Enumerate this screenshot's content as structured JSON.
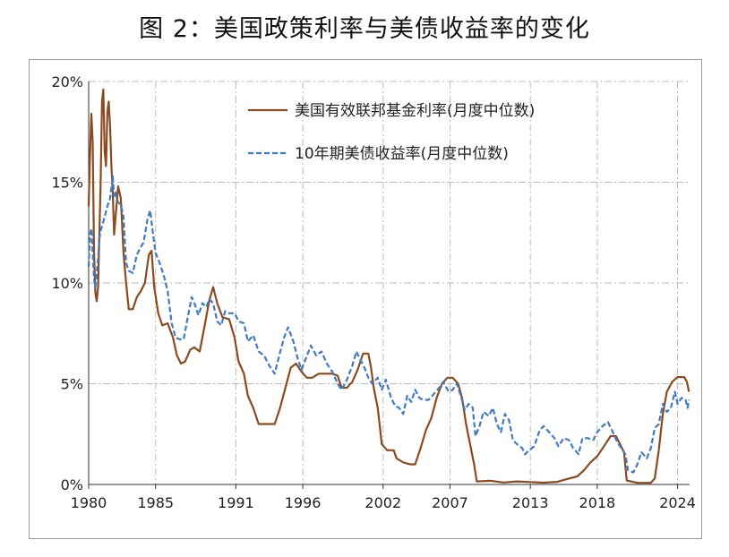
{
  "figure_title": "图 2：美国政策利率与美债收益率的变化",
  "chart_data": {
    "type": "line",
    "title": "图 2：美国政策利率与美债收益率的变化",
    "xlabel": "",
    "ylabel": "",
    "xlim": [
      1980,
      2024.9
    ],
    "ylim": [
      0,
      20
    ],
    "x_ticks": [
      1980,
      1985,
      1991,
      1996,
      2002,
      2007,
      2013,
      2018,
      2024
    ],
    "y_ticks": [
      0,
      5,
      10,
      15,
      20
    ],
    "y_tick_labels": [
      "0%",
      "5%",
      "10%",
      "15%",
      "20%"
    ],
    "grid": true,
    "legend_position": "top-right",
    "series": [
      {
        "name": "美国有效联邦基金利率(月度中位数)",
        "color": "#8B4A1F",
        "style": "solid",
        "points": [
          [
            1980.0,
            13.8
          ],
          [
            1980.1,
            16.4
          ],
          [
            1980.2,
            18.4
          ],
          [
            1980.3,
            17.0
          ],
          [
            1980.4,
            11.5
          ],
          [
            1980.5,
            9.5
          ],
          [
            1980.6,
            9.1
          ],
          [
            1980.7,
            9.8
          ],
          [
            1980.8,
            12.5
          ],
          [
            1980.9,
            15.0
          ],
          [
            1981.0,
            19.0
          ],
          [
            1981.1,
            19.6
          ],
          [
            1981.2,
            16.5
          ],
          [
            1981.3,
            15.8
          ],
          [
            1981.4,
            18.5
          ],
          [
            1981.5,
            19.0
          ],
          [
            1981.6,
            17.8
          ],
          [
            1981.7,
            15.8
          ],
          [
            1981.8,
            14.5
          ],
          [
            1981.9,
            12.4
          ],
          [
            1982.0,
            13.2
          ],
          [
            1982.2,
            14.8
          ],
          [
            1982.4,
            14.2
          ],
          [
            1982.6,
            11.5
          ],
          [
            1982.8,
            10.0
          ],
          [
            1983.0,
            8.7
          ],
          [
            1983.3,
            8.7
          ],
          [
            1983.6,
            9.3
          ],
          [
            1983.9,
            9.6
          ],
          [
            1984.2,
            10.0
          ],
          [
            1984.5,
            11.4
          ],
          [
            1984.7,
            11.6
          ],
          [
            1984.9,
            9.8
          ],
          [
            1985.2,
            8.5
          ],
          [
            1985.5,
            7.9
          ],
          [
            1985.9,
            8.0
          ],
          [
            1986.3,
            7.3
          ],
          [
            1986.6,
            6.4
          ],
          [
            1986.9,
            6.0
          ],
          [
            1987.2,
            6.1
          ],
          [
            1987.6,
            6.7
          ],
          [
            1987.9,
            6.8
          ],
          [
            1988.3,
            6.6
          ],
          [
            1988.7,
            8.0
          ],
          [
            1989.0,
            9.1
          ],
          [
            1989.3,
            9.8
          ],
          [
            1989.6,
            9.0
          ],
          [
            1990.0,
            8.3
          ],
          [
            1990.5,
            8.2
          ],
          [
            1990.9,
            7.3
          ],
          [
            1991.2,
            6.1
          ],
          [
            1991.6,
            5.5
          ],
          [
            1991.9,
            4.4
          ],
          [
            1992.3,
            3.8
          ],
          [
            1992.7,
            3.0
          ],
          [
            1993.1,
            3.0
          ],
          [
            1993.5,
            3.0
          ],
          [
            1993.9,
            3.0
          ],
          [
            1994.3,
            3.8
          ],
          [
            1994.7,
            4.8
          ],
          [
            1995.1,
            5.8
          ],
          [
            1995.5,
            6.0
          ],
          [
            1995.9,
            5.6
          ],
          [
            1996.3,
            5.3
          ],
          [
            1996.7,
            5.3
          ],
          [
            1997.2,
            5.5
          ],
          [
            1997.7,
            5.5
          ],
          [
            1998.2,
            5.5
          ],
          [
            1998.6,
            5.4
          ],
          [
            1998.9,
            4.8
          ],
          [
            1999.3,
            4.8
          ],
          [
            1999.7,
            5.1
          ],
          [
            2000.1,
            5.7
          ],
          [
            2000.5,
            6.5
          ],
          [
            2000.9,
            6.5
          ],
          [
            2001.1,
            5.8
          ],
          [
            2001.3,
            4.8
          ],
          [
            2001.6,
            3.8
          ],
          [
            2001.9,
            2.0
          ],
          [
            2002.3,
            1.7
          ],
          [
            2002.8,
            1.7
          ],
          [
            2003.0,
            1.3
          ],
          [
            2003.5,
            1.1
          ],
          [
            2004.0,
            1.0
          ],
          [
            2004.4,
            1.0
          ],
          [
            2004.8,
            1.8
          ],
          [
            2005.2,
            2.7
          ],
          [
            2005.6,
            3.3
          ],
          [
            2006.0,
            4.3
          ],
          [
            2006.4,
            5.0
          ],
          [
            2006.8,
            5.3
          ],
          [
            2007.2,
            5.3
          ],
          [
            2007.6,
            5.0
          ],
          [
            2007.9,
            4.3
          ],
          [
            2008.2,
            3.0
          ],
          [
            2008.5,
            2.0
          ],
          [
            2008.8,
            1.0
          ],
          [
            2009.0,
            0.15
          ],
          [
            2010.0,
            0.18
          ],
          [
            2011.0,
            0.1
          ],
          [
            2012.0,
            0.15
          ],
          [
            2013.0,
            0.12
          ],
          [
            2014.0,
            0.09
          ],
          [
            2015.0,
            0.13
          ],
          [
            2015.9,
            0.3
          ],
          [
            2016.5,
            0.4
          ],
          [
            2017.0,
            0.7
          ],
          [
            2017.5,
            1.1
          ],
          [
            2018.0,
            1.4
          ],
          [
            2018.5,
            1.9
          ],
          [
            2019.0,
            2.4
          ],
          [
            2019.4,
            2.4
          ],
          [
            2019.7,
            2.0
          ],
          [
            2020.0,
            1.6
          ],
          [
            2020.2,
            0.2
          ],
          [
            2021.0,
            0.08
          ],
          [
            2022.0,
            0.08
          ],
          [
            2022.3,
            0.3
          ],
          [
            2022.6,
            1.7
          ],
          [
            2022.9,
            3.5
          ],
          [
            2023.2,
            4.6
          ],
          [
            2023.6,
            5.1
          ],
          [
            2024.0,
            5.33
          ],
          [
            2024.5,
            5.33
          ],
          [
            2024.7,
            5.1
          ],
          [
            2024.85,
            4.6
          ]
        ]
      },
      {
        "name": "10年期美债收益率(月度中位数)",
        "color": "#3E7BC4",
        "style": "dashed",
        "points": [
          [
            1980.0,
            10.8
          ],
          [
            1980.1,
            12.4
          ],
          [
            1980.2,
            12.7
          ],
          [
            1980.3,
            11.5
          ],
          [
            1980.4,
            10.2
          ],
          [
            1980.5,
            9.8
          ],
          [
            1980.6,
            10.5
          ],
          [
            1980.7,
            11.2
          ],
          [
            1980.8,
            12.2
          ],
          [
            1980.9,
            12.6
          ],
          [
            1981.0,
            12.8
          ],
          [
            1981.2,
            13.3
          ],
          [
            1981.4,
            13.8
          ],
          [
            1981.6,
            14.2
          ],
          [
            1981.8,
            15.3
          ],
          [
            1981.9,
            14.3
          ],
          [
            1982.0,
            14.5
          ],
          [
            1982.2,
            14.0
          ],
          [
            1982.4,
            13.9
          ],
          [
            1982.6,
            13.3
          ],
          [
            1982.8,
            11.0
          ],
          [
            1983.0,
            10.6
          ],
          [
            1983.3,
            10.5
          ],
          [
            1983.6,
            11.4
          ],
          [
            1983.9,
            11.8
          ],
          [
            1984.1,
            12.0
          ],
          [
            1984.4,
            13.2
          ],
          [
            1984.6,
            13.6
          ],
          [
            1984.8,
            12.5
          ],
          [
            1985.0,
            11.5
          ],
          [
            1985.3,
            11.0
          ],
          [
            1985.6,
            10.4
          ],
          [
            1985.9,
            9.6
          ],
          [
            1986.2,
            8.0
          ],
          [
            1986.5,
            7.3
          ],
          [
            1986.8,
            7.2
          ],
          [
            1987.1,
            7.2
          ],
          [
            1987.4,
            8.3
          ],
          [
            1987.7,
            9.3
          ],
          [
            1987.9,
            9.0
          ],
          [
            1988.2,
            8.4
          ],
          [
            1988.5,
            9.0
          ],
          [
            1988.8,
            8.8
          ],
          [
            1989.0,
            9.2
          ],
          [
            1989.3,
            9.0
          ],
          [
            1989.6,
            8.1
          ],
          [
            1989.9,
            7.9
          ],
          [
            1990.2,
            8.6
          ],
          [
            1990.5,
            8.5
          ],
          [
            1990.9,
            8.5
          ],
          [
            1991.2,
            8.1
          ],
          [
            1991.6,
            8.0
          ],
          [
            1991.9,
            7.1
          ],
          [
            1992.3,
            7.4
          ],
          [
            1992.7,
            6.6
          ],
          [
            1993.1,
            6.4
          ],
          [
            1993.5,
            5.9
          ],
          [
            1993.9,
            5.5
          ],
          [
            1994.2,
            6.3
          ],
          [
            1994.6,
            7.3
          ],
          [
            1994.9,
            7.8
          ],
          [
            1995.3,
            7.1
          ],
          [
            1995.6,
            6.3
          ],
          [
            1995.9,
            5.7
          ],
          [
            1996.2,
            6.2
          ],
          [
            1996.6,
            6.9
          ],
          [
            1997.0,
            6.4
          ],
          [
            1997.4,
            6.6
          ],
          [
            1997.8,
            6.0
          ],
          [
            1998.2,
            5.6
          ],
          [
            1998.6,
            5.0
          ],
          [
            1998.9,
            4.7
          ],
          [
            1999.3,
            5.2
          ],
          [
            1999.7,
            5.9
          ],
          [
            2000.0,
            6.6
          ],
          [
            2000.3,
            6.2
          ],
          [
            2000.6,
            5.8
          ],
          [
            2000.9,
            5.3
          ],
          [
            2001.2,
            5.0
          ],
          [
            2001.6,
            5.3
          ],
          [
            2001.9,
            4.7
          ],
          [
            2002.2,
            5.2
          ],
          [
            2002.6,
            4.3
          ],
          [
            2002.9,
            3.9
          ],
          [
            2003.2,
            3.8
          ],
          [
            2003.5,
            3.5
          ],
          [
            2003.8,
            4.4
          ],
          [
            2004.1,
            4.1
          ],
          [
            2004.4,
            4.7
          ],
          [
            2004.7,
            4.3
          ],
          [
            2005.0,
            4.2
          ],
          [
            2005.4,
            4.2
          ],
          [
            2005.8,
            4.5
          ],
          [
            2006.2,
            4.8
          ],
          [
            2006.5,
            5.1
          ],
          [
            2006.9,
            4.6
          ],
          [
            2007.2,
            4.7
          ],
          [
            2007.5,
            5.0
          ],
          [
            2007.8,
            4.4
          ],
          [
            2008.1,
            3.7
          ],
          [
            2008.4,
            4.0
          ],
          [
            2008.7,
            3.8
          ],
          [
            2008.9,
            2.4
          ],
          [
            2009.2,
            2.9
          ],
          [
            2009.5,
            3.6
          ],
          [
            2009.9,
            3.4
          ],
          [
            2010.2,
            3.8
          ],
          [
            2010.5,
            3.0
          ],
          [
            2010.8,
            2.6
          ],
          [
            2011.1,
            3.5
          ],
          [
            2011.4,
            3.2
          ],
          [
            2011.7,
            2.2
          ],
          [
            2012.0,
            2.0
          ],
          [
            2012.4,
            1.8
          ],
          [
            2012.6,
            1.5
          ],
          [
            2012.9,
            1.7
          ],
          [
            2013.3,
            1.9
          ],
          [
            2013.7,
            2.7
          ],
          [
            2014.0,
            2.9
          ],
          [
            2014.4,
            2.6
          ],
          [
            2014.8,
            2.3
          ],
          [
            2015.1,
            1.9
          ],
          [
            2015.5,
            2.3
          ],
          [
            2015.9,
            2.2
          ],
          [
            2016.2,
            1.8
          ],
          [
            2016.6,
            1.5
          ],
          [
            2016.9,
            2.3
          ],
          [
            2017.3,
            2.3
          ],
          [
            2017.7,
            2.2
          ],
          [
            2018.0,
            2.6
          ],
          [
            2018.4,
            2.9
          ],
          [
            2018.8,
            3.1
          ],
          [
            2019.1,
            2.7
          ],
          [
            2019.5,
            2.1
          ],
          [
            2019.8,
            1.8
          ],
          [
            2020.1,
            1.5
          ],
          [
            2020.3,
            0.7
          ],
          [
            2020.7,
            0.6
          ],
          [
            2021.0,
            1.0
          ],
          [
            2021.3,
            1.6
          ],
          [
            2021.7,
            1.3
          ],
          [
            2022.0,
            1.8
          ],
          [
            2022.3,
            2.8
          ],
          [
            2022.6,
            3.0
          ],
          [
            2022.9,
            4.0
          ],
          [
            2023.2,
            3.6
          ],
          [
            2023.5,
            3.8
          ],
          [
            2023.8,
            4.6
          ],
          [
            2024.0,
            4.0
          ],
          [
            2024.3,
            4.3
          ],
          [
            2024.6,
            4.2
          ],
          [
            2024.75,
            3.8
          ],
          [
            2024.85,
            4.2
          ]
        ]
      }
    ]
  }
}
